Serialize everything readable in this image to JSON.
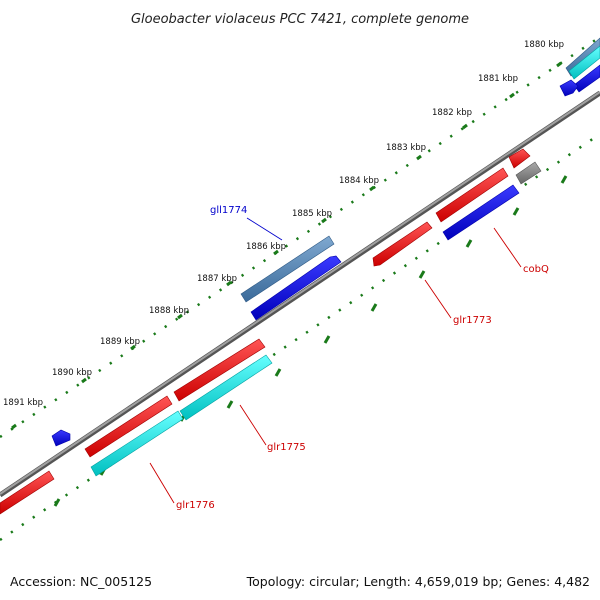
{
  "title": "Gloeobacter violaceus PCC 7421, complete genome",
  "footer": {
    "accession": "Accession: NC_005125",
    "summary": "Topology: circular; Length: 4,659,019 bp; Genes: 4,482"
  },
  "scale_labels": [
    "1880 kbp",
    "1881 kbp",
    "1882 kbp",
    "1883 kbp",
    "1884 kbp",
    "1885 kbp",
    "1886 kbp",
    "1887 kbp",
    "1888 kbp",
    "1889 kbp",
    "1890 kbp",
    "1891 kbp"
  ],
  "gene_labels": {
    "gll1774": "gll1774",
    "cobQ": "cobQ",
    "glr1773": "glr1773",
    "glr1775": "glr1775",
    "glr1776": "glr1776"
  },
  "colors": {
    "forward_gene": "#ff0000",
    "reverse_gene": "#0000ff",
    "forward_cds_alt": "#00e5e5",
    "reverse_cds_alt": "#4682b4",
    "other_feature": "#808080",
    "backbone": "#808080",
    "ticks": "#1a7a1a",
    "forward_label": "#cc0000",
    "reverse_label": "#0000cc"
  }
}
